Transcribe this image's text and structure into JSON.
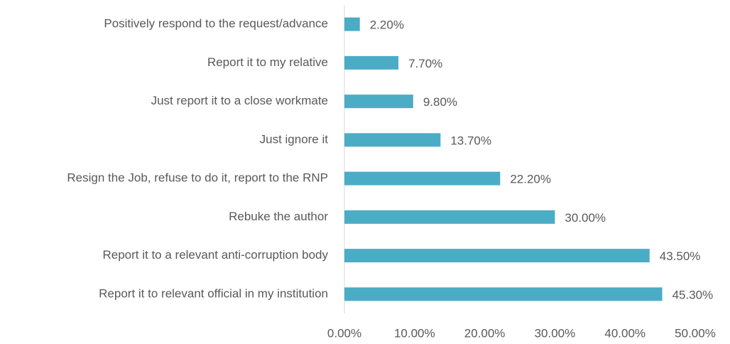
{
  "chart_data": {
    "type": "bar",
    "orientation": "horizontal",
    "categories": [
      "Positively respond to the request/advance",
      "Report it to my relative",
      "Just report it to a close workmate",
      "Just ignore it",
      "Resign the Job, refuse to do it, report to the RNP",
      "Rebuke the author",
      "Report it to a relevant anti-corruption body",
      "Report it to relevant official in my institution"
    ],
    "values": [
      2.2,
      7.7,
      9.8,
      13.7,
      22.2,
      30.0,
      43.5,
      45.3
    ],
    "value_labels": [
      "2.20%",
      "7.70%",
      "9.80%",
      "13.70%",
      "22.20%",
      "30.00%",
      "43.50%",
      "45.30%"
    ],
    "color": "#4bacc6",
    "xlim": [
      0,
      50
    ],
    "xticks": [
      {
        "value": 0,
        "label": "0.00%"
      },
      {
        "value": 10,
        "label": "10.00%"
      },
      {
        "value": 20,
        "label": "20.00%"
      },
      {
        "value": 30,
        "label": "30.00%"
      },
      {
        "value": 40,
        "label": "40.00%"
      },
      {
        "value": 50,
        "label": "50.00%"
      }
    ]
  }
}
